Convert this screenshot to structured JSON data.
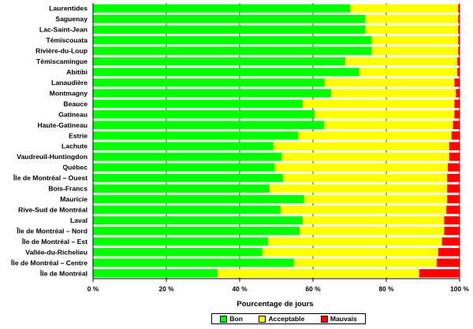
{
  "chart_data": {
    "type": "bar",
    "orientation": "horizontal",
    "stacked": true,
    "xlabel": "Pourcentage de jours",
    "xlim": [
      0,
      100
    ],
    "xticks": [
      "0 %",
      "20 %",
      "40 %",
      "60 %",
      "80 %",
      "100 %"
    ],
    "grid": "vertical",
    "legend_position": "bottom",
    "categories": [
      "Laurentides",
      "Saguenay",
      "Lac-Saint-Jean",
      "Témiscouata",
      "Rivière-du-Loup",
      "Témiscamingue",
      "Abitibi",
      "Lanaudière",
      "Montmagny",
      "Beauce",
      "Gatineau",
      "Haute-Gatineau",
      "Estrie",
      "Lachute",
      "Vaudreuil-Huntingdon",
      "Québec",
      "Île de Montréal – Ouest",
      "Bois-Francs",
      "Mauricie",
      "Rive-Sud de Montréal",
      "Laval",
      "Île de Montréal – Nord",
      "Île de Montréal – Est",
      "Vallée-du-Richelieu",
      "Île de Montréal – Centre",
      "Île de Montréal"
    ],
    "series": [
      {
        "name": "Bon",
        "color": "#00ff00",
        "values": [
          70.2,
          74.2,
          74.2,
          76.0,
          76.0,
          68.8,
          72.6,
          63.2,
          65.0,
          57.2,
          60.4,
          63.0,
          56.0,
          49.2,
          51.4,
          49.6,
          51.8,
          48.2,
          57.6,
          51.2,
          57.2,
          56.4,
          47.8,
          46.2,
          54.8,
          34.0
        ]
      },
      {
        "name": "Acceptable",
        "color": "#ffff00",
        "values": [
          29.4,
          25.4,
          25.4,
          23.6,
          23.6,
          30.6,
          26.8,
          35.4,
          34.0,
          41.4,
          38.2,
          35.2,
          41.8,
          48.0,
          45.8,
          47.2,
          44.8,
          48.4,
          39.0,
          45.2,
          38.6,
          39.4,
          47.4,
          48.0,
          39.0,
          55.0
        ]
      },
      {
        "name": "Mauvais",
        "color": "#ff0000",
        "values": [
          0.4,
          0.4,
          0.4,
          0.4,
          0.4,
          0.6,
          0.6,
          1.4,
          1.0,
          1.4,
          1.4,
          1.8,
          2.2,
          2.8,
          2.8,
          3.2,
          3.4,
          3.4,
          3.4,
          3.6,
          4.2,
          4.2,
          4.8,
          5.8,
          6.2,
          11.0
        ]
      }
    ]
  }
}
